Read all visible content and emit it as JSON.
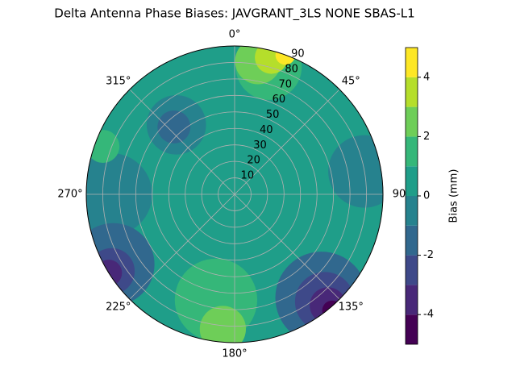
{
  "chart_data": {
    "type": "polar-contour",
    "title": "Delta Antenna Phase Biases: JAVGRANT_3LS    NONE SBAS-L1",
    "rlim": [
      0,
      90
    ],
    "rticks": [
      10,
      20,
      30,
      40,
      50,
      60,
      70,
      80,
      90
    ],
    "thetaticks": [
      {
        "value": 0,
        "label": "0°"
      },
      {
        "value": 45,
        "label": "45°"
      },
      {
        "value": 90,
        "label": "90"
      },
      {
        "value": 135,
        "label": "135°"
      },
      {
        "value": 180,
        "label": "180°"
      },
      {
        "value": 225,
        "label": "225°"
      },
      {
        "value": 270,
        "label": "270°"
      },
      {
        "value": 315,
        "label": "315°"
      }
    ],
    "grid": true,
    "colorbar_label": "Bias (mm)",
    "clim": [
      -5,
      5
    ],
    "cticks": [
      -4,
      -2,
      0,
      2,
      4
    ],
    "levels": [
      -5,
      -4,
      -3,
      -2,
      -1,
      0,
      1,
      2,
      3,
      4,
      5
    ],
    "colors": [
      "#440154",
      "#482878",
      "#3e4989",
      "#31688e",
      "#26828e",
      "#1f9e89",
      "#35b779",
      "#6ece58",
      "#b5de2b",
      "#fde725"
    ],
    "regions": [
      {
        "azimuth": 0,
        "zenith": 0,
        "spread": 95,
        "level": 0
      },
      {
        "azimuth": 270,
        "zenith": 75,
        "spread": 25,
        "level": -1
      },
      {
        "azimuth": 80,
        "zenith": 80,
        "spread": 22,
        "level": -1
      },
      {
        "azimuth": 320,
        "zenith": 55,
        "spread": 18,
        "level": -1
      },
      {
        "azimuth": 318,
        "zenith": 55,
        "spread": 10,
        "level": -2
      },
      {
        "azimuth": 240,
        "zenith": 85,
        "spread": 25,
        "level": -2
      },
      {
        "azimuth": 238,
        "zenith": 88,
        "spread": 14,
        "level": -3
      },
      {
        "azimuth": 238,
        "zenith": 90,
        "spread": 8,
        "level": -4
      },
      {
        "azimuth": 140,
        "zenith": 82,
        "spread": 28,
        "level": -2
      },
      {
        "azimuth": 140,
        "zenith": 85,
        "spread": 18,
        "level": -3
      },
      {
        "azimuth": 140,
        "zenith": 88,
        "spread": 11,
        "level": -4
      },
      {
        "azimuth": 140,
        "zenith": 92,
        "spread": 6,
        "level": -5
      },
      {
        "azimuth": 190,
        "zenith": 65,
        "spread": 25,
        "level": 1
      },
      {
        "azimuth": 185,
        "zenith": 82,
        "spread": 14,
        "level": 2
      },
      {
        "azimuth": 15,
        "zenith": 80,
        "spread": 20,
        "level": 1
      },
      {
        "azimuth": 10,
        "zenith": 82,
        "spread": 14,
        "level": 2
      },
      {
        "azimuth": 15,
        "zenith": 86,
        "spread": 10,
        "level": 3
      },
      {
        "azimuth": 20,
        "zenith": 90,
        "spread": 6,
        "level": 4
      },
      {
        "azimuth": 290,
        "zenith": 85,
        "spread": 10,
        "level": 1
      }
    ]
  }
}
